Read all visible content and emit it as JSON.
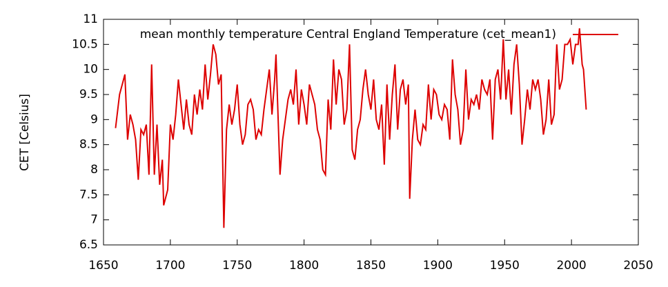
{
  "chart_data": {
    "type": "line",
    "ylabel": "CET [Celsius]",
    "legend": "top right",
    "xlim": [
      1650,
      2050
    ],
    "xticks": [
      1650,
      1700,
      1750,
      1800,
      1850,
      1900,
      1950,
      2000,
      2050
    ],
    "ylim": [
      6.5,
      11
    ],
    "yticks": [
      6.5,
      7,
      7.5,
      8,
      8.5,
      9,
      9.5,
      10,
      10.5,
      11
    ],
    "x": [
      1659,
      1662,
      1664,
      1666,
      1668,
      1670,
      1672,
      1674,
      1676,
      1678,
      1680,
      1682,
      1684,
      1686,
      1688,
      1690,
      1692,
      1694,
      1695,
      1698,
      1700,
      1702,
      1704,
      1706,
      1708,
      1710,
      1712,
      1714,
      1716,
      1718,
      1720,
      1722,
      1724,
      1726,
      1728,
      1730,
      1732,
      1734,
      1736,
      1738,
      1740,
      1742,
      1744,
      1746,
      1748,
      1750,
      1752,
      1754,
      1756,
      1758,
      1760,
      1762,
      1764,
      1766,
      1768,
      1770,
      1772,
      1774,
      1776,
      1778,
      1779,
      1782,
      1784,
      1786,
      1788,
      1790,
      1792,
      1794,
      1796,
      1798,
      1800,
      1802,
      1804,
      1806,
      1808,
      1810,
      1812,
      1814,
      1816,
      1818,
      1820,
      1822,
      1824,
      1826,
      1828,
      1830,
      1832,
      1834,
      1836,
      1838,
      1840,
      1842,
      1844,
      1846,
      1848,
      1850,
      1852,
      1854,
      1856,
      1858,
      1860,
      1862,
      1864,
      1866,
      1868,
      1870,
      1872,
      1874,
      1876,
      1878,
      1879,
      1881,
      1883,
      1885,
      1887,
      1889,
      1891,
      1893,
      1895,
      1897,
      1899,
      1901,
      1903,
      1905,
      1907,
      1909,
      1911,
      1913,
      1915,
      1917,
      1919,
      1921,
      1923,
      1925,
      1927,
      1929,
      1931,
      1933,
      1935,
      1937,
      1939,
      1941,
      1943,
      1945,
      1947,
      1949,
      1951,
      1953,
      1955,
      1957,
      1959,
      1961,
      1963,
      1965,
      1967,
      1969,
      1971,
      1973,
      1975,
      1977,
      1979,
      1981,
      1983,
      1985,
      1987,
      1989,
      1991,
      1993,
      1995,
      1997,
      1999,
      2001,
      2003,
      2005,
      2006,
      2008,
      2009,
      2011
    ],
    "series": [
      {
        "name": "mean monthly temperature Central England Temperature (cet_mean1)",
        "color": "#dd0000",
        "values": [
          8.83,
          9.5,
          9.7,
          9.9,
          8.6,
          9.1,
          8.9,
          8.6,
          7.8,
          8.8,
          8.7,
          8.9,
          7.9,
          10.1,
          7.9,
          8.9,
          7.7,
          8.2,
          7.29,
          7.6,
          8.9,
          8.6,
          9.1,
          9.8,
          9.3,
          8.8,
          9.4,
          8.9,
          8.7,
          9.5,
          9.1,
          9.6,
          9.2,
          10.1,
          9.4,
          9.9,
          10.5,
          10.3,
          9.7,
          9.9,
          6.84,
          8.8,
          9.3,
          8.9,
          9.2,
          9.7,
          8.9,
          8.5,
          8.7,
          9.3,
          9.4,
          9.2,
          8.6,
          8.8,
          8.7,
          9.2,
          9.6,
          10.0,
          9.1,
          9.8,
          10.3,
          7.9,
          8.6,
          9.0,
          9.4,
          9.6,
          9.3,
          10.0,
          8.9,
          9.6,
          9.3,
          8.9,
          9.7,
          9.5,
          9.3,
          8.8,
          8.6,
          8.0,
          7.9,
          9.4,
          8.8,
          10.2,
          9.3,
          10.0,
          9.8,
          8.9,
          9.2,
          10.5,
          8.4,
          8.2,
          8.8,
          9.0,
          9.6,
          10.0,
          9.5,
          9.2,
          9.8,
          9.0,
          8.8,
          9.3,
          8.1,
          9.7,
          8.6,
          9.5,
          10.1,
          8.8,
          9.6,
          9.8,
          9.3,
          9.7,
          7.42,
          8.6,
          9.2,
          8.6,
          8.5,
          8.9,
          8.8,
          9.7,
          9.0,
          9.6,
          9.5,
          9.1,
          9.0,
          9.3,
          9.2,
          8.6,
          10.2,
          9.5,
          9.2,
          8.5,
          8.8,
          10.0,
          9.0,
          9.4,
          9.3,
          9.5,
          9.2,
          9.8,
          9.6,
          9.5,
          9.8,
          8.6,
          9.8,
          10.0,
          9.4,
          10.6,
          9.4,
          10.0,
          9.1,
          10.1,
          10.5,
          9.7,
          8.5,
          9.0,
          9.6,
          9.2,
          9.8,
          9.6,
          9.8,
          9.4,
          8.7,
          9.0,
          9.8,
          8.9,
          9.1,
          10.5,
          9.6,
          9.8,
          10.5,
          10.5,
          10.6,
          10.1,
          10.5,
          10.5,
          10.82,
          10.1,
          10.0,
          9.2
        ]
      }
    ]
  }
}
